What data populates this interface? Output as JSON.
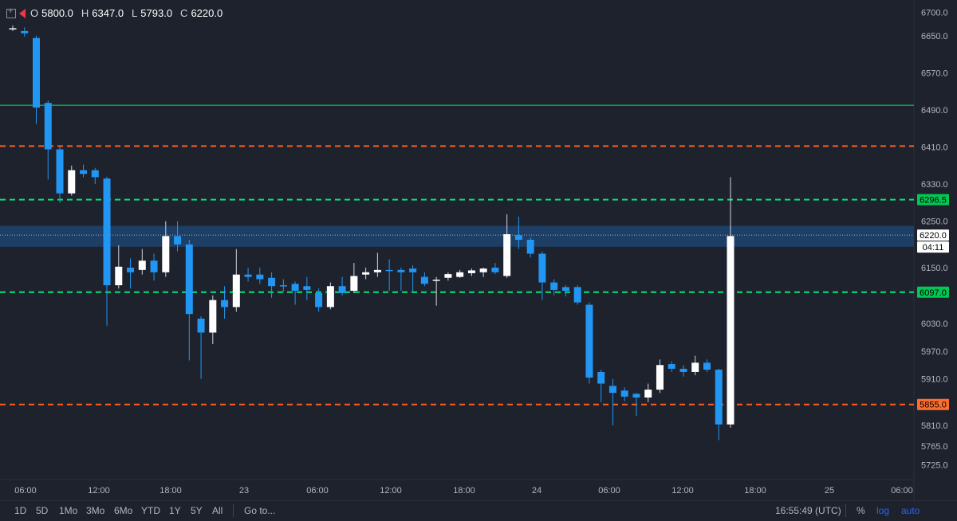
{
  "header": {
    "o_label": "O",
    "o_value": "5800.0",
    "h_label": "H",
    "h_value": "6347.0",
    "l_label": "L",
    "l_value": "5793.0",
    "c_label": "C",
    "c_value": "6220.0"
  },
  "toolbar": {
    "timeframes": [
      "1D",
      "5D",
      "1Mo",
      "3Mo",
      "6Mo",
      "YTD",
      "1Y",
      "5Y",
      "All"
    ],
    "goto_label": "Go to...",
    "clock": "16:55:49 (UTC)",
    "percent_label": "%",
    "log_label": "log",
    "auto_label": "auto"
  },
  "colors": {
    "background": "#1e222d",
    "up_candle": "#ffffff",
    "down_candle": "#2196f3",
    "green_level": "#00e676",
    "orange_level": "#ff5d1f",
    "zone": "#1e4a7a"
  },
  "chart_data": {
    "type": "candlestick",
    "ylim": [
      5700,
      6720
    ],
    "y_ticks": [
      "6700.0",
      "6650.0",
      "6570.0",
      "6490.0",
      "6410.0",
      "6330.0",
      "6250.0",
      "6150.0",
      "6030.0",
      "5970.0",
      "5910.0",
      "5810.0",
      "5765.0",
      "5725.0"
    ],
    "x_ticks": [
      "06:00",
      "12:00",
      "18:00",
      "23",
      "06:00",
      "12:00",
      "18:00",
      "24",
      "06:00",
      "12:00",
      "18:00",
      "25",
      "06:00"
    ],
    "price_labels": [
      {
        "text": "6296.5",
        "value": 6296.5,
        "kind": "green"
      },
      {
        "text": "6220.0",
        "value": 6220.0,
        "kind": "last"
      },
      {
        "text": "04:11",
        "value": 6205,
        "kind": "countdown"
      },
      {
        "text": "6097.0",
        "value": 6097.0,
        "kind": "green"
      },
      {
        "text": "5855.0",
        "value": 5855.0,
        "kind": "orange"
      }
    ],
    "levels": [
      {
        "value": 6500,
        "style": "solid",
        "color": "green"
      },
      {
        "value": 6412,
        "style": "dashed",
        "color": "orange"
      },
      {
        "value": 6296.5,
        "style": "dashed",
        "color": "green"
      },
      {
        "value": 6097,
        "style": "dashed",
        "color": "green"
      },
      {
        "value": 5855,
        "style": "dashed",
        "color": "orange"
      }
    ],
    "zone": {
      "low": 6195,
      "high": 6240
    },
    "candles": [
      {
        "o": 6666,
        "h": 6672,
        "l": 6660,
        "c": 6666
      },
      {
        "o": 6660,
        "h": 6668,
        "l": 6648,
        "c": 6655
      },
      {
        "o": 6645,
        "h": 6650,
        "l": 6460,
        "c": 6495
      },
      {
        "o": 6505,
        "h": 6510,
        "l": 6340,
        "c": 6405
      },
      {
        "o": 6405,
        "h": 6410,
        "l": 6290,
        "c": 6310
      },
      {
        "o": 6310,
        "h": 6370,
        "l": 6305,
        "c": 6360
      },
      {
        "o": 6360,
        "h": 6372,
        "l": 6345,
        "c": 6352
      },
      {
        "o": 6360,
        "h": 6365,
        "l": 6330,
        "c": 6345
      },
      {
        "o": 6342,
        "h": 6346,
        "l": 6025,
        "c": 6112
      },
      {
        "o": 6112,
        "h": 6198,
        "l": 6105,
        "c": 6152
      },
      {
        "o": 6150,
        "h": 6170,
        "l": 6105,
        "c": 6140
      },
      {
        "o": 6145,
        "h": 6190,
        "l": 6135,
        "c": 6165
      },
      {
        "o": 6165,
        "h": 6180,
        "l": 6122,
        "c": 6140
      },
      {
        "o": 6140,
        "h": 6250,
        "l": 6130,
        "c": 6218
      },
      {
        "o": 6218,
        "h": 6250,
        "l": 6185,
        "c": 6200
      },
      {
        "o": 6200,
        "h": 6210,
        "l": 5950,
        "c": 6050
      },
      {
        "o": 6040,
        "h": 6045,
        "l": 5910,
        "c": 6010
      },
      {
        "o": 6010,
        "h": 6090,
        "l": 5985,
        "c": 6080
      },
      {
        "o": 6080,
        "h": 6110,
        "l": 6040,
        "c": 6065
      },
      {
        "o": 6065,
        "h": 6190,
        "l": 6055,
        "c": 6135
      },
      {
        "o": 6135,
        "h": 6150,
        "l": 6120,
        "c": 6130
      },
      {
        "o": 6135,
        "h": 6150,
        "l": 6115,
        "c": 6125
      },
      {
        "o": 6128,
        "h": 6140,
        "l": 6085,
        "c": 6110
      },
      {
        "o": 6112,
        "h": 6125,
        "l": 6098,
        "c": 6110
      },
      {
        "o": 6115,
        "h": 6120,
        "l": 6070,
        "c": 6100
      },
      {
        "o": 6110,
        "h": 6130,
        "l": 6080,
        "c": 6102
      },
      {
        "o": 6095,
        "h": 6105,
        "l": 6055,
        "c": 6065
      },
      {
        "o": 6065,
        "h": 6118,
        "l": 6060,
        "c": 6110
      },
      {
        "o": 6110,
        "h": 6130,
        "l": 6090,
        "c": 6095
      },
      {
        "o": 6100,
        "h": 6160,
        "l": 6095,
        "c": 6132
      },
      {
        "o": 6135,
        "h": 6150,
        "l": 6125,
        "c": 6140
      },
      {
        "o": 6140,
        "h": 6182,
        "l": 6130,
        "c": 6145
      },
      {
        "o": 6145,
        "h": 6168,
        "l": 6100,
        "c": 6144
      },
      {
        "o": 6145,
        "h": 6150,
        "l": 6100,
        "c": 6140
      },
      {
        "o": 6148,
        "h": 6155,
        "l": 6098,
        "c": 6140
      },
      {
        "o": 6130,
        "h": 6140,
        "l": 6110,
        "c": 6115
      },
      {
        "o": 6122,
        "h": 6130,
        "l": 6068,
        "c": 6124
      },
      {
        "o": 6128,
        "h": 6140,
        "l": 6122,
        "c": 6136
      },
      {
        "o": 6130,
        "h": 6145,
        "l": 6128,
        "c": 6140
      },
      {
        "o": 6138,
        "h": 6148,
        "l": 6132,
        "c": 6144
      },
      {
        "o": 6140,
        "h": 6150,
        "l": 6130,
        "c": 6148
      },
      {
        "o": 6150,
        "h": 6160,
        "l": 6136,
        "c": 6140
      },
      {
        "o": 6132,
        "h": 6265,
        "l": 6128,
        "c": 6222
      },
      {
        "o": 6220,
        "h": 6260,
        "l": 6190,
        "c": 6210
      },
      {
        "o": 6210,
        "h": 6215,
        "l": 6172,
        "c": 6180
      },
      {
        "o": 6180,
        "h": 6185,
        "l": 6080,
        "c": 6118
      },
      {
        "o": 6118,
        "h": 6125,
        "l": 6090,
        "c": 6102
      },
      {
        "o": 6108,
        "h": 6112,
        "l": 6088,
        "c": 6100
      },
      {
        "o": 6108,
        "h": 6112,
        "l": 6070,
        "c": 6075
      },
      {
        "o": 6070,
        "h": 6075,
        "l": 5900,
        "c": 5913
      },
      {
        "o": 5925,
        "h": 5930,
        "l": 5860,
        "c": 5900
      },
      {
        "o": 5895,
        "h": 5910,
        "l": 5810,
        "c": 5880
      },
      {
        "o": 5885,
        "h": 5892,
        "l": 5862,
        "c": 5872
      },
      {
        "o": 5878,
        "h": 5880,
        "l": 5830,
        "c": 5870
      },
      {
        "o": 5870,
        "h": 5900,
        "l": 5860,
        "c": 5887
      },
      {
        "o": 5887,
        "h": 5952,
        "l": 5880,
        "c": 5940
      },
      {
        "o": 5942,
        "h": 5948,
        "l": 5925,
        "c": 5932
      },
      {
        "o": 5932,
        "h": 5940,
        "l": 5915,
        "c": 5925
      },
      {
        "o": 5925,
        "h": 5960,
        "l": 5918,
        "c": 5945
      },
      {
        "o": 5945,
        "h": 5952,
        "l": 5925,
        "c": 5930
      },
      {
        "o": 5930,
        "h": 5932,
        "l": 5778,
        "c": 5812
      },
      {
        "o": 5812,
        "h": 6345,
        "l": 5805,
        "c": 6218
      }
    ]
  }
}
